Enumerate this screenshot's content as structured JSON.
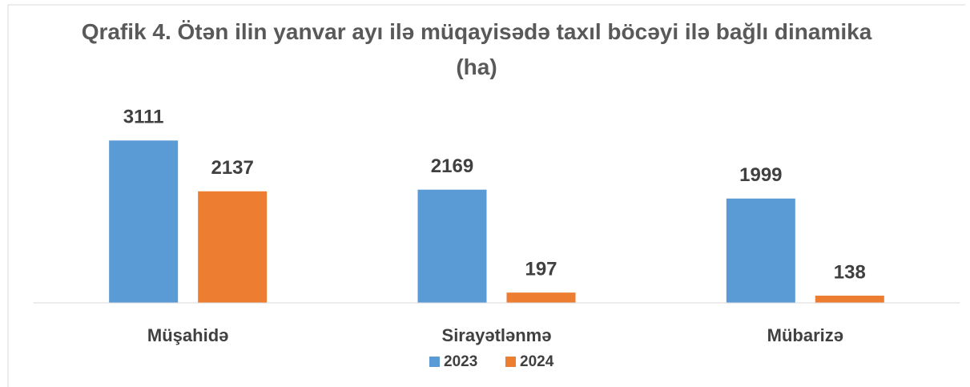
{
  "chart_data": {
    "type": "bar",
    "title": "Qrafik 4. Ötən ilin yanvar ayı ilə müqayisədə taxıl böcəyi ilə bağlı dinamika (ha)",
    "categories": [
      "Müşahidə",
      "Sirayətlənmə",
      "Mübarizə"
    ],
    "series": [
      {
        "name": "2023",
        "color": "#5b9bd5",
        "values": [
          3111,
          2169,
          1999
        ]
      },
      {
        "name": "2024",
        "color": "#ed7d31",
        "values": [
          2137,
          197,
          138
        ]
      }
    ],
    "ylim": [
      0,
      3500
    ],
    "legend": "bottom"
  }
}
